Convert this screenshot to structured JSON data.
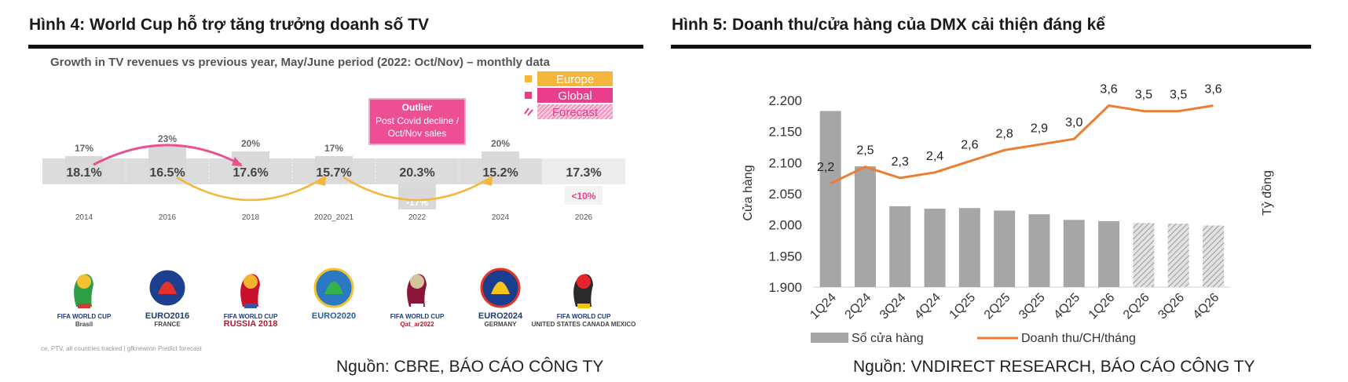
{
  "left": {
    "figure_title": "Hình 4: World Cup hỗ trợ tăng trưởng doanh số TV",
    "source": "Nguồn: CBRE, BÁO CÁO CÔNG TY",
    "logos": [
      {
        "icon": "fifa-world-cup-2014-logo",
        "line1": "FIFA WORLD CUP",
        "line2": "Brasil"
      },
      {
        "icon": "uefa-euro-2016-logo",
        "line1": "EURO2016",
        "line2": "FRANCE"
      },
      {
        "icon": "fifa-world-cup-russia-2018-logo",
        "line1": "FIFA WORLD CUP",
        "line2": "RUSSIA 2018"
      },
      {
        "icon": "uefa-euro-2020-logo",
        "line1": "EURO2020",
        "line2": ""
      },
      {
        "icon": "fifa-world-cup-qatar-2022-logo",
        "line1": "FIFA WORLD CUP",
        "line2": "Qat_ar2022"
      },
      {
        "icon": "uefa-euro-2024-logo",
        "line1": "EURO2024",
        "line2": "GERMANY"
      },
      {
        "icon": "fifa-world-cup-2026-logo",
        "line1": "FIFA WORLD CUP",
        "line2": "UNITED STATES CANADA MEXICO"
      }
    ],
    "footnote": "ce, PTV, all countries tracked | gfknewron Predict forecast",
    "chart_data": {
      "type": "bar",
      "title": "Growth in TV revenues vs previous year, May/June period (2022: Oct/Nov) – monthly data",
      "categories": [
        "2014",
        "2016",
        "2018",
        "2020_2021",
        "2022",
        "2024",
        "2026"
      ],
      "series": [
        {
          "name": "Europe",
          "values": [
            17,
            23,
            20,
            17,
            -17,
            20,
            null
          ],
          "labels": [
            "17%",
            "23%",
            "20%",
            "17%",
            "-17%",
            "20%",
            ""
          ],
          "color": "#f5b63e"
        },
        {
          "name": "Global",
          "values": [
            18.1,
            16.5,
            17.6,
            15.7,
            20.3,
            15.2,
            17.3
          ],
          "labels": [
            "18.1%",
            "16.5%",
            "17.6%",
            "15.7%",
            "20.3%",
            "15.2%",
            "17.3%"
          ],
          "color": "#e83e8c"
        },
        {
          "name": "Forecast",
          "values": [
            null,
            null,
            null,
            null,
            null,
            null,
            10
          ],
          "labels": [
            "",
            "",
            "",
            "",
            "",
            "",
            "<10%"
          ],
          "color": "#e83e8c"
        }
      ],
      "annotation": {
        "title": "Outlier",
        "text": "Post Covid decline / Oct/Nov sales"
      },
      "arcs": [
        {
          "from": "2014",
          "to": "2018",
          "color": "#e8508f"
        },
        {
          "from": "2016",
          "to": "2020_2021",
          "color": "#f5b63e"
        },
        {
          "from": "2020_2021",
          "to": "2024",
          "color": "#f5b63e"
        }
      ],
      "legend": "top-right"
    }
  },
  "right": {
    "figure_title": "Hình 5: Doanh thu/cửa hàng của DMX cải thiện đáng kể",
    "source": "Nguồn: VNDIRECT RESEARCH, BÁO CÁO CÔNG TY",
    "chart_data": {
      "type": "bar",
      "categories": [
        "1Q24",
        "2Q24",
        "3Q24",
        "4Q24",
        "1Q25",
        "2Q25",
        "3Q25",
        "4Q25",
        "1Q26",
        "2Q26",
        "3Q26",
        "4Q26"
      ],
      "series": [
        {
          "name": "Số cửa hàng",
          "type": "bar",
          "axis": "left",
          "values": [
            2183,
            2094,
            2030,
            2026,
            2027,
            2023,
            2017,
            2008,
            2006,
            2003,
            2002,
            1999
          ],
          "forecast_from_index": 9,
          "color": "#a6a6a6"
        },
        {
          "name": "Doanh thu/CH/tháng",
          "type": "line",
          "axis": "right",
          "values": [
            2.2,
            2.5,
            2.3,
            2.4,
            2.6,
            2.8,
            2.9,
            3.0,
            3.6,
            3.5,
            3.5,
            3.6
          ],
          "labels": [
            "2,2",
            "2,5",
            "2,3",
            "2,4",
            "2,6",
            "2,8",
            "2,9",
            "3,0",
            "3,6",
            "3,5",
            "3,5",
            "3,6"
          ],
          "color": "#ed7d31"
        }
      ],
      "ylabel": "Cửa hàng",
      "y2label": "Tỷ đồng",
      "ylim": [
        1900,
        2200
      ],
      "yticks": [
        "2.200",
        "2.150",
        "2.100",
        "2.050",
        "2.000",
        "1.950",
        "1.900"
      ],
      "legend": "bottom"
    }
  }
}
